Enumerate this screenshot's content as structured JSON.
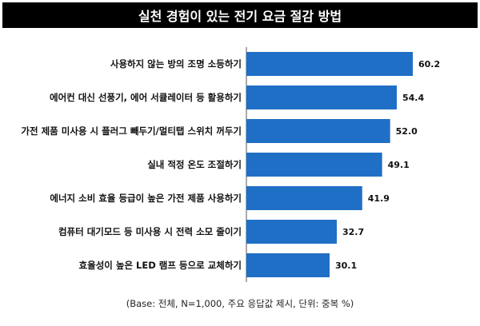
{
  "chart_data": {
    "type": "bar",
    "orientation": "horizontal",
    "title": "실천 경험이 있는 전기 요금 절감 방법",
    "categories": [
      "사용하지 않는 방의 조명 소등하기",
      "에어컨 대신 선풍기, 에어 서큘레이터 등 활용하기",
      "가전 제품 미사용 시 플러그 빼두기/멀티탭 스위치 꺼두기",
      "실내 적정 온도 조절하기",
      "에너지 소비 효율 등급이 높은 가전 제품 사용하기",
      "컴퓨터 대기모드 등 미사용 시 전력 소모 줄이기",
      "효율성이 높은 LED 램프 등으로 교체하기"
    ],
    "values": [
      60.2,
      54.4,
      52.0,
      49.1,
      41.9,
      32.7,
      30.1
    ],
    "value_labels": [
      "60.2",
      "54.4",
      "52.0",
      "49.1",
      "41.9",
      "32.7",
      "30.1"
    ],
    "xlim": [
      0,
      60.2
    ],
    "grid": false,
    "bar_color": "#1F6FC6"
  },
  "footnote": "(Base: 전체, N=1,000, 주요 응답값 제시, 단위: 중복 %)"
}
